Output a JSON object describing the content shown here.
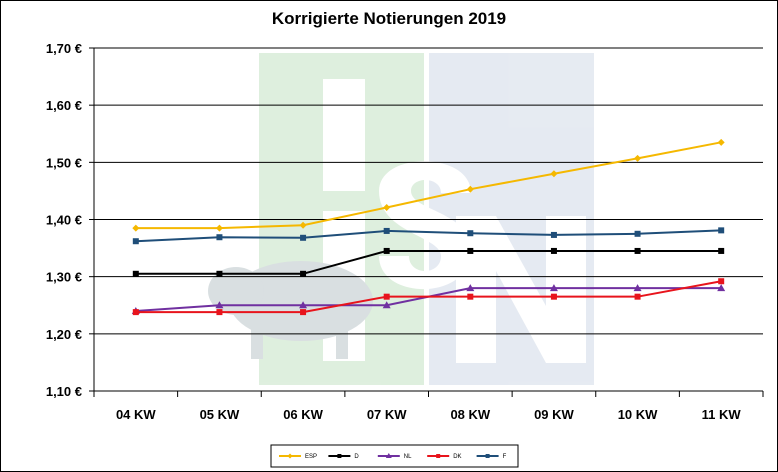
{
  "chart_data": {
    "type": "line",
    "title": "Korrigierte Notierungen 2019",
    "xlabel": "",
    "ylabel": "",
    "categories": [
      "04 KW",
      "05 KW",
      "06 KW",
      "07 KW",
      "08 KW",
      "09 KW",
      "10 KW",
      "11 KW"
    ],
    "ylim": [
      1.1,
      1.7
    ],
    "yticks": [
      "1,10 €",
      "1,20 €",
      "1,30 €",
      "1,40 €",
      "1,50 €",
      "1,60 €",
      "1,70 €"
    ],
    "grid": true,
    "legend_position": "bottom",
    "series": [
      {
        "name": "ESP",
        "color": "#F5B800",
        "marker": "diamond",
        "values": [
          1.385,
          1.385,
          1.39,
          1.421,
          1.453,
          1.48,
          1.507,
          1.535
        ]
      },
      {
        "name": "D",
        "color": "#000000",
        "marker": "square",
        "values": [
          1.305,
          1.305,
          1.305,
          1.345,
          1.345,
          1.345,
          1.345,
          1.345
        ]
      },
      {
        "name": "NL",
        "color": "#7030A0",
        "marker": "triangle",
        "values": [
          1.24,
          1.25,
          1.25,
          1.25,
          1.28,
          1.28,
          1.28,
          1.28
        ]
      },
      {
        "name": "DK",
        "color": "#E8141C",
        "marker": "square",
        "values": [
          1.238,
          1.238,
          1.238,
          1.265,
          1.265,
          1.265,
          1.265,
          1.292
        ]
      },
      {
        "name": "F",
        "color": "#1F4E79",
        "marker": "square",
        "values": [
          1.362,
          1.369,
          1.368,
          1.38,
          1.376,
          1.373,
          1.375,
          1.381
        ]
      }
    ]
  }
}
